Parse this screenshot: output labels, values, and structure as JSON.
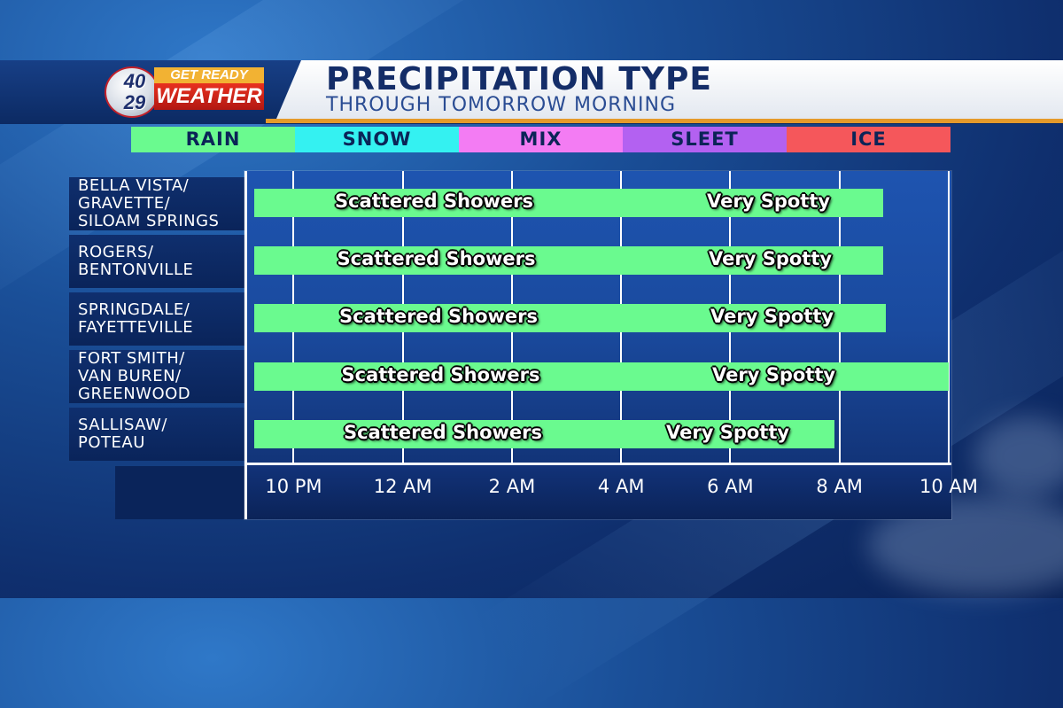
{
  "title": "PRECIPITATION TYPE",
  "subtitle": "THROUGH TOMORROW MORNING",
  "logo": {
    "num_top": "40",
    "num_bottom": "29",
    "tagline_top": "GET READY",
    "tagline_bottom": "WEATHER"
  },
  "legend": [
    {
      "label": "RAIN",
      "color": "#6afa8f"
    },
    {
      "label": "SNOW",
      "color": "#34f1f1"
    },
    {
      "label": "MIX",
      "color": "#f37cf3"
    },
    {
      "label": "SLEET",
      "color": "#b361f1"
    },
    {
      "label": "ICE",
      "color": "#f5575b"
    }
  ],
  "chart_data": {
    "type": "bar",
    "orientation": "horizontal-gantt",
    "title": "PRECIPITATION TYPE",
    "subtitle": "THROUGH TOMORROW MORNING",
    "x_unit": "hours",
    "x_ticks": [
      {
        "value": 22,
        "label": "10 PM"
      },
      {
        "value": 24,
        "label": "12 AM"
      },
      {
        "value": 26,
        "label": "2 AM"
      },
      {
        "value": 28,
        "label": "4 AM"
      },
      {
        "value": 30,
        "label": "6 AM"
      },
      {
        "value": 32,
        "label": "8 AM"
      },
      {
        "value": 34,
        "label": "10 AM"
      }
    ],
    "x_range": [
      21.1,
      34.05
    ],
    "rows": [
      {
        "location": [
          "BELLA VISTA/",
          "GRAVETTE/",
          "SILOAM SPRINGS"
        ],
        "type": "RAIN",
        "start": 21.1,
        "end": 32.8,
        "labels": [
          "Scattered Showers",
          "Very Spotty"
        ]
      },
      {
        "location": [
          "ROGERS/",
          "BENTONVILLE"
        ],
        "type": "RAIN",
        "start": 21.1,
        "end": 32.8,
        "labels": [
          "Scattered Showers",
          "Very Spotty"
        ]
      },
      {
        "location": [
          "SPRINGDALE/",
          "FAYETTEVILLE"
        ],
        "type": "RAIN",
        "start": 21.1,
        "end": 32.85,
        "labels": [
          "Scattered Showers",
          "Very Spotty"
        ]
      },
      {
        "location": [
          "FORT SMITH/",
          "VAN BUREN/",
          "GREENWOOD"
        ],
        "type": "RAIN",
        "start": 21.1,
        "end": 34.0,
        "labels": [
          "Scattered Showers",
          "Very Spotty"
        ]
      },
      {
        "location": [
          "SALLISAW/",
          "POTEAU"
        ],
        "type": "RAIN",
        "start": 21.1,
        "end": 31.9,
        "labels": [
          "Scattered Showers",
          "Very Spotty"
        ]
      }
    ]
  }
}
